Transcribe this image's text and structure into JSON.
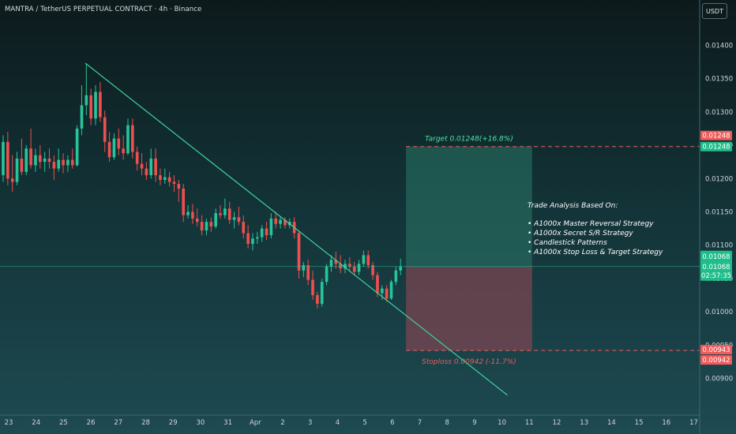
{
  "header": {
    "title": "MANTRA / TetherUS PERPETUAL CONTRACT · 4h · Binance",
    "currency": "USDT"
  },
  "chart_data": {
    "type": "candlestick",
    "ylim": [
      0.0087,
      0.0143
    ],
    "y_ticks": [
      "0.01400",
      "0.01350",
      "0.01300",
      "0.01250",
      "0.01200",
      "0.01150",
      "0.01100",
      "0.01050",
      "0.01000",
      "0.00950",
      "0.00900"
    ],
    "x_ticks": [
      "23",
      "24",
      "25",
      "26",
      "27",
      "28",
      "29",
      "30",
      "31",
      "Apr",
      "2",
      "3",
      "4",
      "5",
      "6",
      "7",
      "8",
      "9",
      "10",
      "11",
      "12",
      "13",
      "14",
      "15",
      "16",
      "17"
    ],
    "current_price": {
      "price": "0.01068",
      "countdown": "02:57:35",
      "value": 0.01068
    },
    "target": {
      "value": 0.01248,
      "label": "Target 0.01248(+16.8%)",
      "tag": "0.01248"
    },
    "stoploss": {
      "value": 0.00942,
      "label": "Stoploss 0.00942 (-11.7%)",
      "tag": "0.00942",
      "tag_upper": "0.00943"
    },
    "entry": 0.01068,
    "trendline": {
      "start": {
        "day": 25.8,
        "price": 0.01373
      },
      "end": {
        "day": 10.2,
        "price": 0.00875
      }
    },
    "candles": [
      {
        "o": 0.01205,
        "h": 0.01265,
        "l": 0.01195,
        "c": 0.01255
      },
      {
        "o": 0.01255,
        "h": 0.0127,
        "l": 0.0119,
        "c": 0.012
      },
      {
        "o": 0.012,
        "h": 0.01235,
        "l": 0.0118,
        "c": 0.01195
      },
      {
        "o": 0.01195,
        "h": 0.0124,
        "l": 0.0119,
        "c": 0.0123
      },
      {
        "o": 0.0123,
        "h": 0.0126,
        "l": 0.01205,
        "c": 0.0121
      },
      {
        "o": 0.0121,
        "h": 0.0125,
        "l": 0.01205,
        "c": 0.01245
      },
      {
        "o": 0.01245,
        "h": 0.01275,
        "l": 0.01215,
        "c": 0.0122
      },
      {
        "o": 0.0122,
        "h": 0.01245,
        "l": 0.0121,
        "c": 0.01235
      },
      {
        "o": 0.01235,
        "h": 0.0125,
        "l": 0.01215,
        "c": 0.01225
      },
      {
        "o": 0.01225,
        "h": 0.0124,
        "l": 0.0121,
        "c": 0.0123
      },
      {
        "o": 0.0123,
        "h": 0.01245,
        "l": 0.01215,
        "c": 0.01225
      },
      {
        "o": 0.01225,
        "h": 0.01235,
        "l": 0.01198,
        "c": 0.01215
      },
      {
        "o": 0.01215,
        "h": 0.01245,
        "l": 0.0121,
        "c": 0.01228
      },
      {
        "o": 0.01228,
        "h": 0.01238,
        "l": 0.01208,
        "c": 0.0122
      },
      {
        "o": 0.0122,
        "h": 0.01235,
        "l": 0.0121,
        "c": 0.01228
      },
      {
        "o": 0.01228,
        "h": 0.01245,
        "l": 0.01215,
        "c": 0.0122
      },
      {
        "o": 0.0122,
        "h": 0.0128,
        "l": 0.01218,
        "c": 0.01275
      },
      {
        "o": 0.01275,
        "h": 0.0134,
        "l": 0.01265,
        "c": 0.0131
      },
      {
        "o": 0.0131,
        "h": 0.01372,
        "l": 0.01295,
        "c": 0.01325
      },
      {
        "o": 0.01325,
        "h": 0.01335,
        "l": 0.0128,
        "c": 0.0129
      },
      {
        "o": 0.0129,
        "h": 0.0134,
        "l": 0.0128,
        "c": 0.0133
      },
      {
        "o": 0.0133,
        "h": 0.01345,
        "l": 0.01285,
        "c": 0.01292
      },
      {
        "o": 0.01292,
        "h": 0.01302,
        "l": 0.0124,
        "c": 0.01255
      },
      {
        "o": 0.01255,
        "h": 0.0127,
        "l": 0.01225,
        "c": 0.01232
      },
      {
        "o": 0.01232,
        "h": 0.01268,
        "l": 0.01228,
        "c": 0.0126
      },
      {
        "o": 0.0126,
        "h": 0.01275,
        "l": 0.01235,
        "c": 0.01245
      },
      {
        "o": 0.01245,
        "h": 0.01265,
        "l": 0.01228,
        "c": 0.01238
      },
      {
        "o": 0.01238,
        "h": 0.0129,
        "l": 0.01235,
        "c": 0.0128
      },
      {
        "o": 0.0128,
        "h": 0.0129,
        "l": 0.0123,
        "c": 0.0124
      },
      {
        "o": 0.0124,
        "h": 0.01248,
        "l": 0.01212,
        "c": 0.01222
      },
      {
        "o": 0.01222,
        "h": 0.01238,
        "l": 0.01205,
        "c": 0.01215
      },
      {
        "o": 0.01215,
        "h": 0.01225,
        "l": 0.01198,
        "c": 0.01205
      },
      {
        "o": 0.01205,
        "h": 0.01245,
        "l": 0.012,
        "c": 0.0123
      },
      {
        "o": 0.0123,
        "h": 0.01245,
        "l": 0.01195,
        "c": 0.01205
      },
      {
        "o": 0.01205,
        "h": 0.01215,
        "l": 0.0119,
        "c": 0.01198
      },
      {
        "o": 0.01198,
        "h": 0.01215,
        "l": 0.01192,
        "c": 0.01202
      },
      {
        "o": 0.01202,
        "h": 0.0121,
        "l": 0.01188,
        "c": 0.01195
      },
      {
        "o": 0.01195,
        "h": 0.01205,
        "l": 0.0118,
        "c": 0.01192
      },
      {
        "o": 0.01192,
        "h": 0.01198,
        "l": 0.01165,
        "c": 0.01185
      },
      {
        "o": 0.01185,
        "h": 0.01192,
        "l": 0.01135,
        "c": 0.01145
      },
      {
        "o": 0.01145,
        "h": 0.0116,
        "l": 0.0114,
        "c": 0.0115
      },
      {
        "o": 0.0115,
        "h": 0.01162,
        "l": 0.01132,
        "c": 0.0114
      },
      {
        "o": 0.0114,
        "h": 0.01155,
        "l": 0.01128,
        "c": 0.01135
      },
      {
        "o": 0.01135,
        "h": 0.01145,
        "l": 0.01115,
        "c": 0.01122
      },
      {
        "o": 0.01122,
        "h": 0.0114,
        "l": 0.01115,
        "c": 0.01135
      },
      {
        "o": 0.01135,
        "h": 0.01142,
        "l": 0.0112,
        "c": 0.01128
      },
      {
        "o": 0.01128,
        "h": 0.01155,
        "l": 0.01125,
        "c": 0.01148
      },
      {
        "o": 0.01148,
        "h": 0.0116,
        "l": 0.0114,
        "c": 0.01145
      },
      {
        "o": 0.01145,
        "h": 0.0117,
        "l": 0.0114,
        "c": 0.01155
      },
      {
        "o": 0.01155,
        "h": 0.01165,
        "l": 0.01132,
        "c": 0.01138
      },
      {
        "o": 0.01138,
        "h": 0.0115,
        "l": 0.01125,
        "c": 0.01142
      },
      {
        "o": 0.01142,
        "h": 0.01158,
        "l": 0.0113,
        "c": 0.01135
      },
      {
        "o": 0.01135,
        "h": 0.01145,
        "l": 0.0111,
        "c": 0.01118
      },
      {
        "o": 0.01118,
        "h": 0.0113,
        "l": 0.01095,
        "c": 0.01102
      },
      {
        "o": 0.01102,
        "h": 0.01118,
        "l": 0.01092,
        "c": 0.0111
      },
      {
        "o": 0.0111,
        "h": 0.0112,
        "l": 0.01102,
        "c": 0.01112
      },
      {
        "o": 0.01112,
        "h": 0.0113,
        "l": 0.01105,
        "c": 0.01125
      },
      {
        "o": 0.01125,
        "h": 0.01135,
        "l": 0.01108,
        "c": 0.01115
      },
      {
        "o": 0.01115,
        "h": 0.01148,
        "l": 0.0111,
        "c": 0.0114
      },
      {
        "o": 0.0114,
        "h": 0.0115,
        "l": 0.01125,
        "c": 0.01132
      },
      {
        "o": 0.01132,
        "h": 0.01142,
        "l": 0.01125,
        "c": 0.01138
      },
      {
        "o": 0.01138,
        "h": 0.01142,
        "l": 0.01125,
        "c": 0.0113
      },
      {
        "o": 0.0113,
        "h": 0.0114,
        "l": 0.01125,
        "c": 0.01135
      },
      {
        "o": 0.01135,
        "h": 0.01142,
        "l": 0.0111,
        "c": 0.01118
      },
      {
        "o": 0.01118,
        "h": 0.01122,
        "l": 0.0105,
        "c": 0.01062
      },
      {
        "o": 0.01062,
        "h": 0.01075,
        "l": 0.01052,
        "c": 0.0107
      },
      {
        "o": 0.0107,
        "h": 0.01078,
        "l": 0.0104,
        "c": 0.01048
      },
      {
        "o": 0.01048,
        "h": 0.01062,
        "l": 0.01018,
        "c": 0.01025
      },
      {
        "o": 0.01025,
        "h": 0.0103,
        "l": 0.01005,
        "c": 0.01012
      },
      {
        "o": 0.01012,
        "h": 0.0105,
        "l": 0.01008,
        "c": 0.01045
      },
      {
        "o": 0.01045,
        "h": 0.01072,
        "l": 0.0104,
        "c": 0.01068
      },
      {
        "o": 0.01068,
        "h": 0.01085,
        "l": 0.0106,
        "c": 0.01078
      },
      {
        "o": 0.01078,
        "h": 0.0109,
        "l": 0.01065,
        "c": 0.01072
      },
      {
        "o": 0.01072,
        "h": 0.01085,
        "l": 0.01058,
        "c": 0.01065
      },
      {
        "o": 0.01065,
        "h": 0.01078,
        "l": 0.01058,
        "c": 0.01072
      },
      {
        "o": 0.01072,
        "h": 0.01082,
        "l": 0.01062,
        "c": 0.01068
      },
      {
        "o": 0.01068,
        "h": 0.01075,
        "l": 0.01055,
        "c": 0.0106
      },
      {
        "o": 0.0106,
        "h": 0.01078,
        "l": 0.01055,
        "c": 0.01072
      },
      {
        "o": 0.01072,
        "h": 0.01092,
        "l": 0.01068,
        "c": 0.01085
      },
      {
        "o": 0.01085,
        "h": 0.01092,
        "l": 0.01065,
        "c": 0.0107
      },
      {
        "o": 0.0107,
        "h": 0.01075,
        "l": 0.01048,
        "c": 0.01055
      },
      {
        "o": 0.01055,
        "h": 0.0106,
        "l": 0.01022,
        "c": 0.01028
      },
      {
        "o": 0.01028,
        "h": 0.0104,
        "l": 0.01018,
        "c": 0.01035
      },
      {
        "o": 0.01035,
        "h": 0.0104,
        "l": 0.01015,
        "c": 0.0102
      },
      {
        "o": 0.0102,
        "h": 0.01048,
        "l": 0.01018,
        "c": 0.01045
      },
      {
        "o": 0.01045,
        "h": 0.01068,
        "l": 0.0104,
        "c": 0.01062
      },
      {
        "o": 0.01062,
        "h": 0.0108,
        "l": 0.01055,
        "c": 0.01068
      }
    ]
  },
  "annotation": {
    "title": "Trade Analysis Based On:",
    "items": [
      "A1000x Master Reversal Strategy",
      "A1000x Secret S/R Strategy",
      "Candlestick Patterns",
      "A1000x Stop Loss & Target Strategy"
    ]
  },
  "colors": {
    "bull": "#26c59a",
    "bear": "#ef4f4f",
    "target_zone": "#2a7868",
    "stop_zone": "#7a4652",
    "trendline": "#3fd39a",
    "target_text": "#4ee3a2",
    "stop_text": "#f05b5b"
  }
}
